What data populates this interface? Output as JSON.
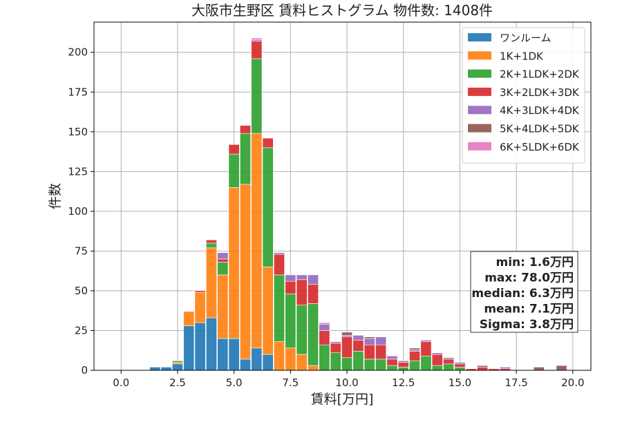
{
  "chart_data": {
    "type": "bar",
    "stacked": true,
    "title": "大阪市生野区 賃料ヒストグラム  物件数: 1408件",
    "xlabel": "賃料[万円]",
    "ylabel": "件数",
    "xlim": [
      -1.2,
      20.8
    ],
    "ylim": [
      0,
      219
    ],
    "xticks": [
      0.0,
      2.5,
      5.0,
      7.5,
      10.0,
      12.5,
      15.0,
      17.5,
      20.0
    ],
    "xtick_labels": [
      "0.0",
      "2.5",
      "5.0",
      "7.5",
      "10.0",
      "12.5",
      "15.0",
      "17.5",
      "20.0"
    ],
    "yticks": [
      0,
      25,
      50,
      75,
      100,
      125,
      150,
      175,
      200
    ],
    "ytick_labels": [
      "0",
      "25",
      "50",
      "75",
      "100",
      "125",
      "150",
      "175",
      "200"
    ],
    "grid": true,
    "legend_position": "top-right",
    "bin_width": 0.5,
    "x": [
      1.5,
      2.0,
      2.5,
      3.0,
      3.5,
      4.0,
      4.5,
      5.0,
      5.5,
      6.0,
      6.5,
      7.0,
      7.5,
      8.0,
      8.5,
      9.0,
      9.5,
      10.0,
      10.5,
      11.0,
      11.5,
      12.0,
      12.5,
      13.0,
      13.5,
      14.0,
      14.5,
      15.0,
      15.5,
      16.0,
      16.5,
      17.0,
      18.5,
      19.5
    ],
    "series": [
      {
        "name": "ワンルーム",
        "color": "#1f77b4",
        "values": [
          2,
          2,
          4,
          28,
          30,
          33,
          20,
          20,
          7,
          14,
          10,
          0,
          0,
          0,
          0,
          0,
          0,
          0,
          0,
          0,
          0,
          0,
          0,
          0,
          0,
          0,
          0,
          0,
          0,
          0,
          0,
          0,
          0,
          0
        ]
      },
      {
        "name": "1K+1DK",
        "color": "#ff7f0e",
        "values": [
          0,
          0,
          1,
          9,
          19,
          44,
          40,
          95,
          110,
          135,
          55,
          18,
          14,
          10,
          3,
          0,
          0,
          0,
          0,
          0,
          0,
          0,
          0,
          0,
          0,
          0,
          0,
          0,
          0,
          0,
          0,
          0,
          0,
          0
        ]
      },
      {
        "name": "2K+1LDK+2DK",
        "color": "#2ca02c",
        "values": [
          0,
          0,
          1,
          0,
          0,
          3,
          8,
          21,
          32,
          47,
          75,
          42,
          34,
          31,
          39,
          16,
          11,
          8,
          12,
          7,
          7,
          3,
          2,
          6,
          9,
          3,
          4,
          2,
          0,
          0,
          0,
          0,
          0,
          0
        ]
      },
      {
        "name": "3K+2LDK+3DK",
        "color": "#d62728",
        "values": [
          0,
          0,
          0,
          0,
          1,
          2,
          2,
          6,
          5,
          11,
          6,
          13,
          8,
          16,
          12,
          9,
          6,
          13,
          7,
          9,
          9,
          4,
          3,
          6,
          9,
          7,
          3,
          2,
          1,
          2,
          1,
          1,
          0,
          0
        ]
      },
      {
        "name": "4K+3LDK+4DK",
        "color": "#9467bd",
        "values": [
          0,
          0,
          0,
          0,
          0,
          0,
          4,
          0,
          0,
          1,
          0,
          1,
          4,
          3,
          6,
          4,
          1,
          1,
          3,
          4,
          5,
          2,
          1,
          1,
          1,
          1,
          1,
          1,
          0,
          0,
          0,
          1,
          0,
          0
        ]
      },
      {
        "name": "5K+4LDK+5DK",
        "color": "#8c564b",
        "values": [
          0,
          0,
          0,
          0,
          0,
          0,
          0,
          0,
          0,
          0,
          0,
          0,
          0,
          0,
          0,
          0,
          0,
          2,
          0,
          1,
          0,
          0,
          0,
          1,
          0,
          0,
          0,
          0,
          0,
          1,
          0,
          0,
          2,
          3
        ]
      },
      {
        "name": "6K+5LDK+6DK",
        "color": "#e377c2",
        "values": [
          0,
          0,
          0,
          0,
          0,
          0,
          0,
          0,
          0,
          1,
          0,
          0,
          0,
          0,
          0,
          1,
          0,
          0,
          0,
          0,
          0,
          0,
          0,
          0,
          0,
          0,
          0,
          0,
          0,
          0,
          0,
          0,
          0,
          0
        ]
      }
    ],
    "stats_box": [
      "min: 1.6万円",
      "max: 78.0万円",
      "median: 6.3万円",
      "mean: 7.1万円",
      "Sigma: 3.8万円"
    ]
  }
}
